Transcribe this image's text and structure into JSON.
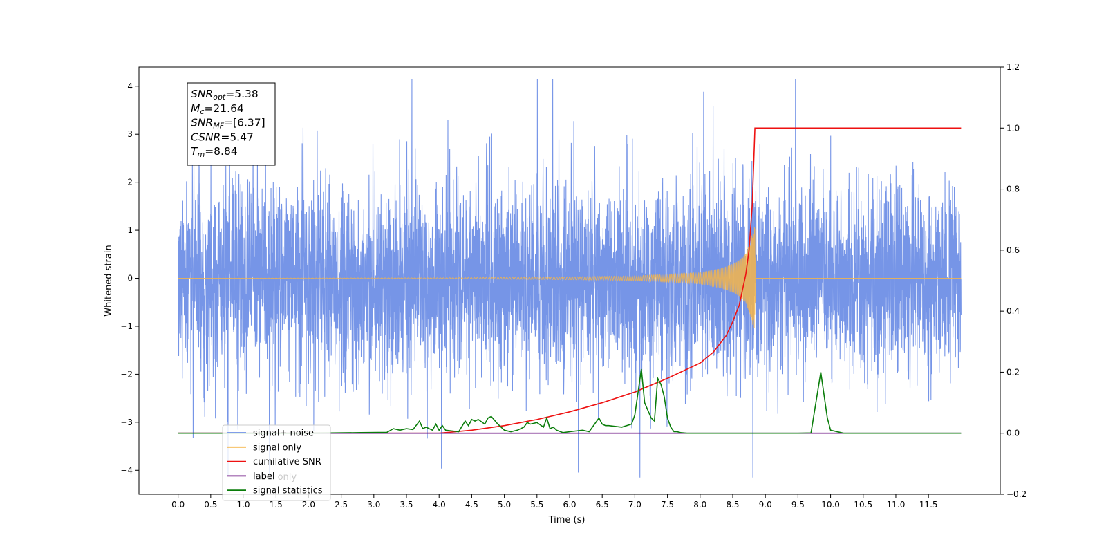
{
  "chart_data": {
    "type": "line",
    "xlabel": "Time (s)",
    "ylabel": "Whitened strain",
    "xlim": [
      -0.6,
      12.6
    ],
    "ylim": [
      -4.5,
      4.4
    ],
    "y2lim": [
      -0.2,
      1.2
    ],
    "xticks": [
      0.0,
      0.5,
      1.0,
      1.5,
      2.0,
      2.5,
      3.0,
      3.5,
      4.0,
      4.5,
      5.0,
      5.5,
      6.0,
      6.5,
      7.0,
      7.5,
      8.0,
      8.5,
      9.0,
      9.5,
      10.0,
      10.5,
      11.0,
      11.5
    ],
    "xtick_labels": [
      "0.0",
      "0.5",
      "1.0",
      "1.5",
      "2.0",
      "2.5",
      "3.0",
      "3.5",
      "4.0",
      "4.5",
      "5.0",
      "5.5",
      "6.0",
      "6.5",
      "7.0",
      "7.5",
      "8.0",
      "8.5",
      "9.0",
      "9.5",
      "10.0",
      "10.5",
      "11.0",
      "11.5"
    ],
    "yticks": [
      -4,
      -3,
      -2,
      -1,
      0,
      1,
      2,
      3,
      4
    ],
    "ytick_labels": [
      "−4",
      "−3",
      "−2",
      "−1",
      "0",
      "1",
      "2",
      "3",
      "4"
    ],
    "y2ticks": [
      -0.2,
      0.0,
      0.2,
      0.4,
      0.6,
      0.8,
      1.0,
      1.2
    ],
    "y2tick_labels": [
      "−0.2",
      "0.0",
      "0.2",
      "0.4",
      "0.6",
      "0.8",
      "1.0",
      "1.2"
    ],
    "grid": false,
    "legend_position": "lower-left",
    "series": [
      {
        "name": "signal+ noise",
        "axis": "left",
        "color": "#6f8fe6",
        "style": "dense noise, approx. uniform amplitude about 1.6 (peaks to about 4) over 0.0–12.0 s with the chirp added",
        "x_range": [
          0.0,
          12.0
        ],
        "amplitude": 1.6
      },
      {
        "name": "signal only",
        "axis": "left",
        "color": "#f5b54a",
        "style": "chirp oscillation",
        "x": [
          0.0,
          4.0,
          5.0,
          6.0,
          7.0,
          7.5,
          8.0,
          8.3,
          8.5,
          8.6,
          8.7,
          8.75,
          8.8,
          8.84,
          8.85,
          12.0
        ],
        "envelope": [
          0.0,
          0.01,
          0.02,
          0.03,
          0.05,
          0.08,
          0.12,
          0.2,
          0.3,
          0.38,
          0.52,
          0.7,
          0.95,
          1.1,
          0.0,
          0.0
        ]
      },
      {
        "name": "cumilative SNR",
        "axis": "right",
        "color": "#ee1111",
        "x": [
          0.0,
          4.0,
          4.5,
          5.0,
          5.5,
          6.0,
          6.5,
          7.0,
          7.5,
          8.0,
          8.2,
          8.4,
          8.5,
          8.6,
          8.7,
          8.75,
          8.8,
          8.84,
          8.85,
          12.0
        ],
        "values": [
          0.0,
          0.0,
          0.01,
          0.025,
          0.045,
          0.07,
          0.1,
          0.135,
          0.18,
          0.23,
          0.265,
          0.32,
          0.365,
          0.42,
          0.52,
          0.6,
          0.75,
          1.0,
          1.0,
          1.0
        ]
      },
      {
        "name": "label only",
        "axis": "right",
        "color": "#6a0f80",
        "x": [
          0.0,
          12.0
        ],
        "values": [
          0.0,
          0.0
        ]
      },
      {
        "name": "signal statistics",
        "axis": "right",
        "color": "#0a7d0a",
        "x": [
          0.0,
          2.0,
          2.8,
          3.2,
          3.3,
          3.4,
          3.5,
          3.6,
          3.7,
          3.75,
          3.8,
          3.9,
          3.95,
          4.0,
          4.05,
          4.1,
          4.3,
          4.4,
          4.45,
          4.5,
          4.55,
          4.6,
          4.7,
          4.75,
          4.8,
          4.9,
          5.0,
          5.1,
          5.2,
          5.3,
          5.35,
          5.4,
          5.5,
          5.6,
          5.65,
          5.7,
          5.75,
          5.8,
          5.9,
          6.0,
          6.2,
          6.3,
          6.45,
          6.5,
          6.55,
          6.6,
          6.8,
          6.95,
          7.0,
          7.1,
          7.15,
          7.25,
          7.3,
          7.35,
          7.4,
          7.45,
          7.5,
          7.55,
          7.6,
          7.65,
          7.7,
          7.8,
          9.5,
          9.7,
          9.85,
          9.95,
          10.0,
          10.2,
          12.0
        ],
        "values": [
          0.0,
          0.0,
          0.002,
          0.003,
          0.015,
          0.01,
          0.015,
          0.012,
          0.04,
          0.015,
          0.02,
          0.01,
          0.03,
          0.01,
          0.025,
          0.01,
          0.005,
          0.04,
          0.025,
          0.045,
          0.04,
          0.045,
          0.03,
          0.05,
          0.055,
          0.03,
          0.01,
          0.005,
          0.01,
          0.02,
          0.035,
          0.03,
          0.035,
          0.02,
          0.05,
          0.015,
          0.02,
          0.01,
          0.002,
          0.005,
          0.01,
          0.005,
          0.05,
          0.03,
          0.025,
          0.025,
          0.02,
          0.03,
          0.06,
          0.21,
          0.1,
          0.05,
          0.04,
          0.18,
          0.16,
          0.12,
          0.05,
          0.02,
          0.005,
          0.005,
          0.002,
          0.0,
          0.0,
          0.001,
          0.2,
          0.05,
          0.01,
          0.0,
          0.0
        ]
      },
      {
        "name": "label",
        "axis": "right",
        "color": "#6a0f80",
        "x": [
          0.0,
          12.0
        ],
        "values": [
          0.0,
          0.0
        ]
      }
    ],
    "legend_entries": [
      {
        "label": "signal+ noise",
        "color": "#6f8fe6"
      },
      {
        "label": "signal only",
        "color": "#f5b54a"
      },
      {
        "label": "cumilative SNR",
        "color": "#ee1111"
      },
      {
        "label": "label",
        "color": "#6a0f80"
      },
      {
        "label": "signal statistics",
        "color": "#0a7d0a"
      }
    ],
    "hidden_legend_entry": "label only",
    "info_box": {
      "lines": [
        {
          "symbol": "SNR",
          "sub": "opt",
          "rest": "=5.38"
        },
        {
          "symbol": "M",
          "sub": "c",
          "rest": "=21.64"
        },
        {
          "symbol": "SNR",
          "sub": "MF",
          "rest": "=[6.37]"
        },
        {
          "symbol": "CSNR",
          "sub": "",
          "rest": "=5.47"
        },
        {
          "symbol": "T",
          "sub": "m",
          "rest": "=8.84"
        }
      ]
    }
  }
}
